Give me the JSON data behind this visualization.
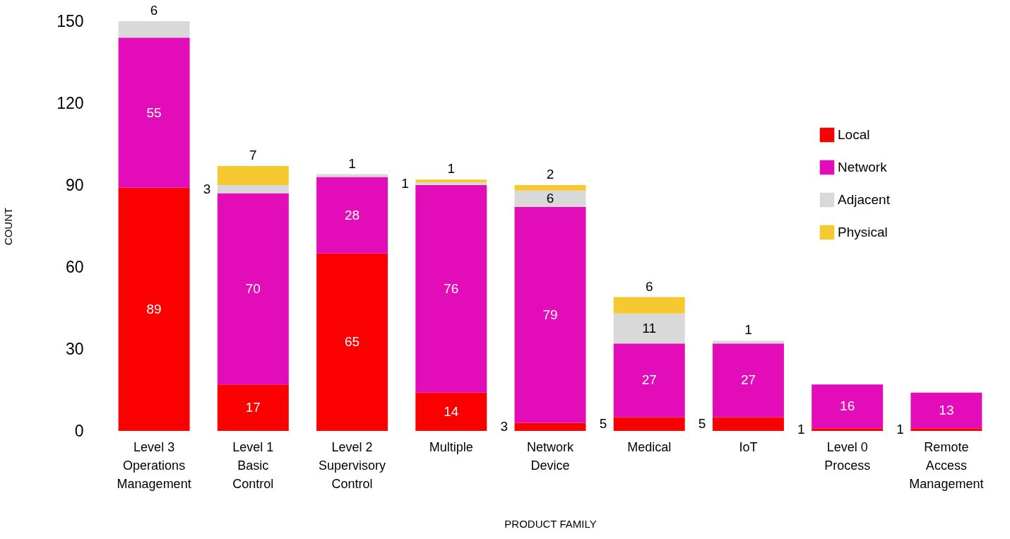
{
  "chart_data": {
    "type": "bar",
    "stacked": true,
    "xlabel": "PRODUCT FAMILY",
    "ylabel": "COUNT",
    "categories": [
      "Level 3 Operations Management",
      "Level 1 Basic Control",
      "Level 2 Supervisory Control",
      "Multiple",
      "Network Device",
      "Medical",
      "IoT",
      "Level 0 Process",
      "Remote Access Management"
    ],
    "series": [
      {
        "name": "Local",
        "color": "#fa0000",
        "values": [
          89,
          17,
          65,
          14,
          3,
          5,
          5,
          1,
          1
        ]
      },
      {
        "name": "Network",
        "color": "#e20cb8",
        "values": [
          55,
          70,
          28,
          76,
          79,
          27,
          27,
          16,
          13
        ]
      },
      {
        "name": "Adjacent",
        "color": "#d9d9d9",
        "values": [
          6,
          3,
          1,
          1,
          6,
          11,
          1,
          null,
          null
        ]
      },
      {
        "name": "Physical",
        "color": "#f7c930",
        "values": [
          null,
          7,
          null,
          1,
          2,
          6,
          null,
          null,
          null
        ]
      }
    ],
    "ylim": [
      0,
      150
    ],
    "yticks": [
      0,
      30,
      60,
      90,
      120,
      150
    ],
    "grid": false,
    "legend": "top right",
    "data_labels": true
  }
}
